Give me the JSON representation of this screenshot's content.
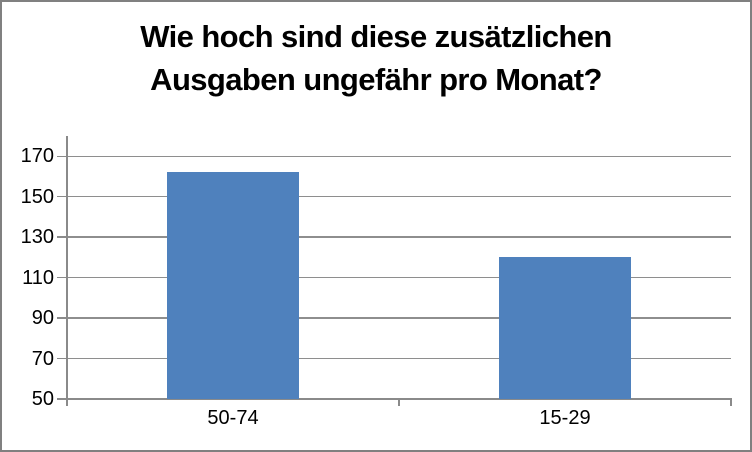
{
  "chart_data": {
    "type": "bar",
    "title": "Wie hoch sind diese zusätzlichen\nAusgaben ungefähr pro Monat?",
    "categories": [
      "50-74",
      "15-29"
    ],
    "values": [
      162,
      120
    ],
    "xlabel": "",
    "ylabel": "",
    "ylim": [
      50,
      180
    ],
    "yticks": [
      50,
      70,
      90,
      110,
      130,
      150,
      170
    ],
    "grid": true,
    "legend": "none",
    "bar_color": "#4F81BD",
    "gridline_color": "#8E8E8E",
    "axis_color": "#8A8A8A",
    "text_color": "#000000",
    "title_color": "#000000",
    "border_color": "#808080",
    "background_color": "#FFFFFF"
  }
}
